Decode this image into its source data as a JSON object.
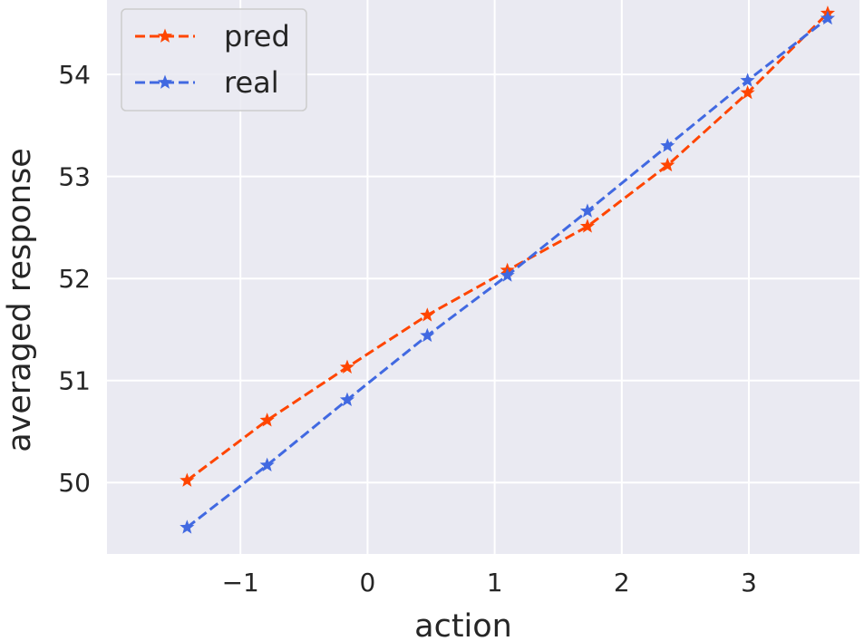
{
  "chart_data": {
    "type": "line",
    "xlabel": "action",
    "ylabel": "averaged response",
    "xlim": [
      -2.05,
      3.87
    ],
    "ylim": [
      49.3,
      54.73
    ],
    "xticks": [
      -1,
      0,
      1,
      2,
      3
    ],
    "xtick_labels": [
      "−1",
      "0",
      "1",
      "2",
      "3"
    ],
    "yticks": [
      50,
      51,
      52,
      53,
      54
    ],
    "ytick_labels": [
      "50",
      "51",
      "52",
      "53",
      "54"
    ],
    "grid": true,
    "legend_position": "upper-left",
    "background_color": "#eaeaf2",
    "grid_color": "#ffffff",
    "x": [
      -1.42,
      -0.79,
      -0.16,
      0.47,
      1.1,
      1.73,
      2.36,
      2.99,
      3.62
    ],
    "series": [
      {
        "name": "pred",
        "color": "#ff4500",
        "marker": "star",
        "line_style": "dashed",
        "values": [
          50.02,
          50.61,
          51.13,
          51.64,
          52.08,
          52.51,
          53.11,
          53.82,
          54.6
        ]
      },
      {
        "name": "real",
        "color": "#4169e1",
        "marker": "star",
        "line_style": "dashed",
        "values": [
          49.56,
          50.17,
          50.81,
          51.44,
          52.03,
          52.66,
          53.3,
          53.94,
          54.55
        ]
      }
    ]
  }
}
